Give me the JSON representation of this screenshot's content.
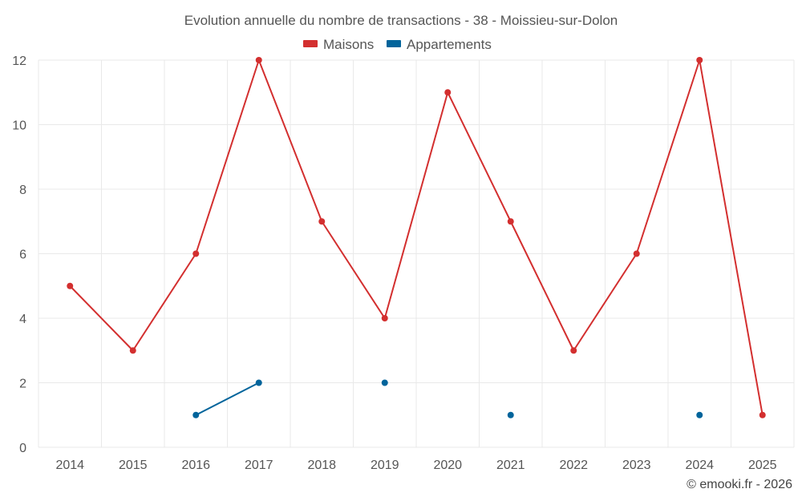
{
  "chart_data": {
    "type": "line",
    "title": "Evolution annuelle du nombre de transactions - 38 - Moissieu-sur-Dolon",
    "categories": [
      "2014",
      "2015",
      "2016",
      "2017",
      "2018",
      "2019",
      "2020",
      "2021",
      "2022",
      "2023",
      "2024",
      "2025"
    ],
    "series": [
      {
        "name": "Maisons",
        "color": "#d32f2f",
        "values": [
          5,
          3,
          6,
          12,
          7,
          4,
          11,
          7,
          3,
          6,
          12,
          1
        ]
      },
      {
        "name": "Appartements",
        "color": "#01649b",
        "values": [
          null,
          null,
          1,
          2,
          null,
          2,
          null,
          1,
          null,
          null,
          1,
          null
        ]
      }
    ],
    "ylim": [
      0,
      12
    ],
    "yticks": [
      "0",
      "2",
      "4",
      "6",
      "8",
      "10",
      "12"
    ],
    "xlabel": "",
    "ylabel": "",
    "grid": true,
    "legend": "top-center",
    "credit": "© emooki.fr - 2026"
  }
}
